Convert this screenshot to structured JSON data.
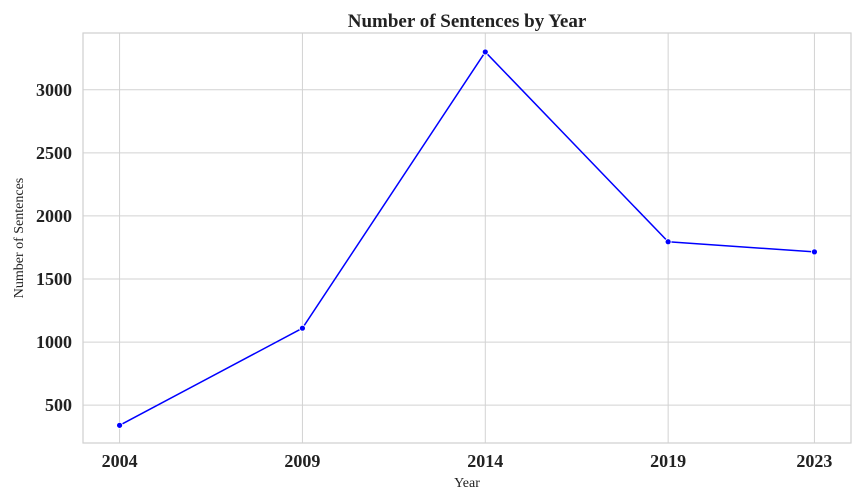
{
  "chart_data": {
    "type": "line",
    "title": "Number of Sentences by Year",
    "xlabel": "Year",
    "ylabel": "Number of Sentences",
    "x": [
      2004,
      2009,
      2014,
      2019,
      2023
    ],
    "series": [
      {
        "values": [
          340,
          1110,
          3300,
          1795,
          1715
        ],
        "color": "#0000ff"
      }
    ],
    "xticks": [
      "2004",
      "2009",
      "2014",
      "2019",
      "2023"
    ],
    "yticks": [
      500,
      1000,
      1500,
      2000,
      2500,
      3000
    ],
    "xlim": [
      2003,
      2024
    ],
    "ylim": [
      200,
      3450
    ],
    "grid": true,
    "marker": "circle"
  }
}
